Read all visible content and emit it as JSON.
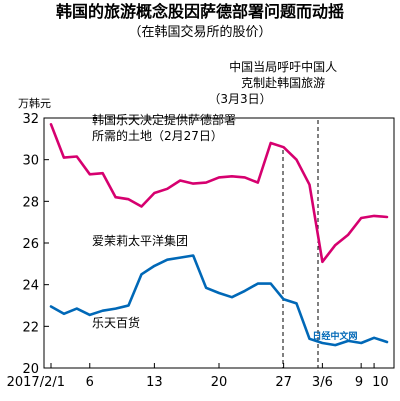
{
  "chart_data": {
    "type": "line",
    "title": "韩国的旅游概念股因萨德部署问题而动摇",
    "subtitle": "（在韩国交易所的股价）",
    "y_unit": "万韩元",
    "ylim": [
      20,
      32
    ],
    "y_ticks": [
      20,
      22,
      24,
      26,
      28,
      30,
      32
    ],
    "x_tick_labels": [
      "2017/2/1",
      "6",
      "13",
      "20",
      "27",
      "3/6",
      "9",
      "10"
    ],
    "series": [
      {
        "name": "爱茉莉太平洋集团",
        "color": "#d6006f",
        "values": [
          31.7,
          30.1,
          30.15,
          29.3,
          29.35,
          28.2,
          28.1,
          27.75,
          28.4,
          28.6,
          29.0,
          28.85,
          28.9,
          29.15,
          29.2,
          29.15,
          28.9,
          30.8,
          30.6,
          30.0,
          28.8,
          25.1,
          25.9,
          26.4,
          27.2,
          27.3,
          27.25
        ]
      },
      {
        "name": "乐天百货",
        "color": "#0068b7",
        "values": [
          22.95,
          22.6,
          22.85,
          22.55,
          22.75,
          22.85,
          23.0,
          24.5,
          24.9,
          25.2,
          25.3,
          25.4,
          23.85,
          23.6,
          23.4,
          23.7,
          24.05,
          24.05,
          23.3,
          23.1,
          21.4,
          21.2,
          21.1,
          21.3,
          21.2,
          21.45,
          21.25
        ]
      }
    ],
    "annotations": [
      {
        "lines": [
          "韩国乐天决定提供萨德部署",
          "所需的土地（2月27日）"
        ]
      },
      {
        "lines": [
          "中国当局呼吁中国人",
          "克制赴韩国旅游",
          "（3月3日）"
        ]
      }
    ],
    "watermark": "日经中文网",
    "grid": false
  }
}
